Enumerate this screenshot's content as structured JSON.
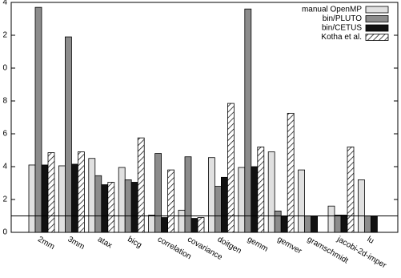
{
  "chart_data": {
    "type": "bar",
    "categories": [
      "2mm",
      "3mm",
      "atax",
      "bicg",
      "correlation",
      "covariance",
      "doitgen",
      "gemm",
      "gemver",
      "gramschmidt",
      "jacobi-2d-imper",
      "lu"
    ],
    "series": [
      {
        "name": "manual OpenMP",
        "color": "#e0e0e0",
        "values": [
          4.1,
          4.05,
          4.5,
          3.95,
          1.05,
          1.35,
          4.55,
          3.95,
          4.9,
          3.8,
          1.6,
          3.2
        ]
      },
      {
        "name": "bin/PLUTO",
        "color": "#8c8c8c",
        "values": [
          13.7,
          11.9,
          3.45,
          3.2,
          4.8,
          4.6,
          2.8,
          13.6,
          1.3,
          1.0,
          1.05,
          1.0
        ]
      },
      {
        "name": "bin/CETUS",
        "color": "#111111",
        "values": [
          4.1,
          4.15,
          2.9,
          3.05,
          0.9,
          0.85,
          3.35,
          4.0,
          1.0,
          1.0,
          1.05,
          1.0
        ]
      },
      {
        "name": "Kotha et al.",
        "color": "#ffffff",
        "pattern": "hatch",
        "values": [
          4.85,
          4.9,
          3.05,
          5.75,
          3.8,
          0.9,
          7.85,
          5.2,
          7.25,
          null,
          5.2,
          null
        ]
      }
    ],
    "ylim": [
      0,
      14
    ],
    "yticks": [
      0,
      2,
      4,
      6,
      8,
      {
        "value": 10,
        "label": "0"
      },
      {
        "value": 12,
        "label": "2"
      },
      {
        "value": 14,
        "label": "4"
      }
    ],
    "reference_line": 1,
    "legend": "top-right"
  }
}
